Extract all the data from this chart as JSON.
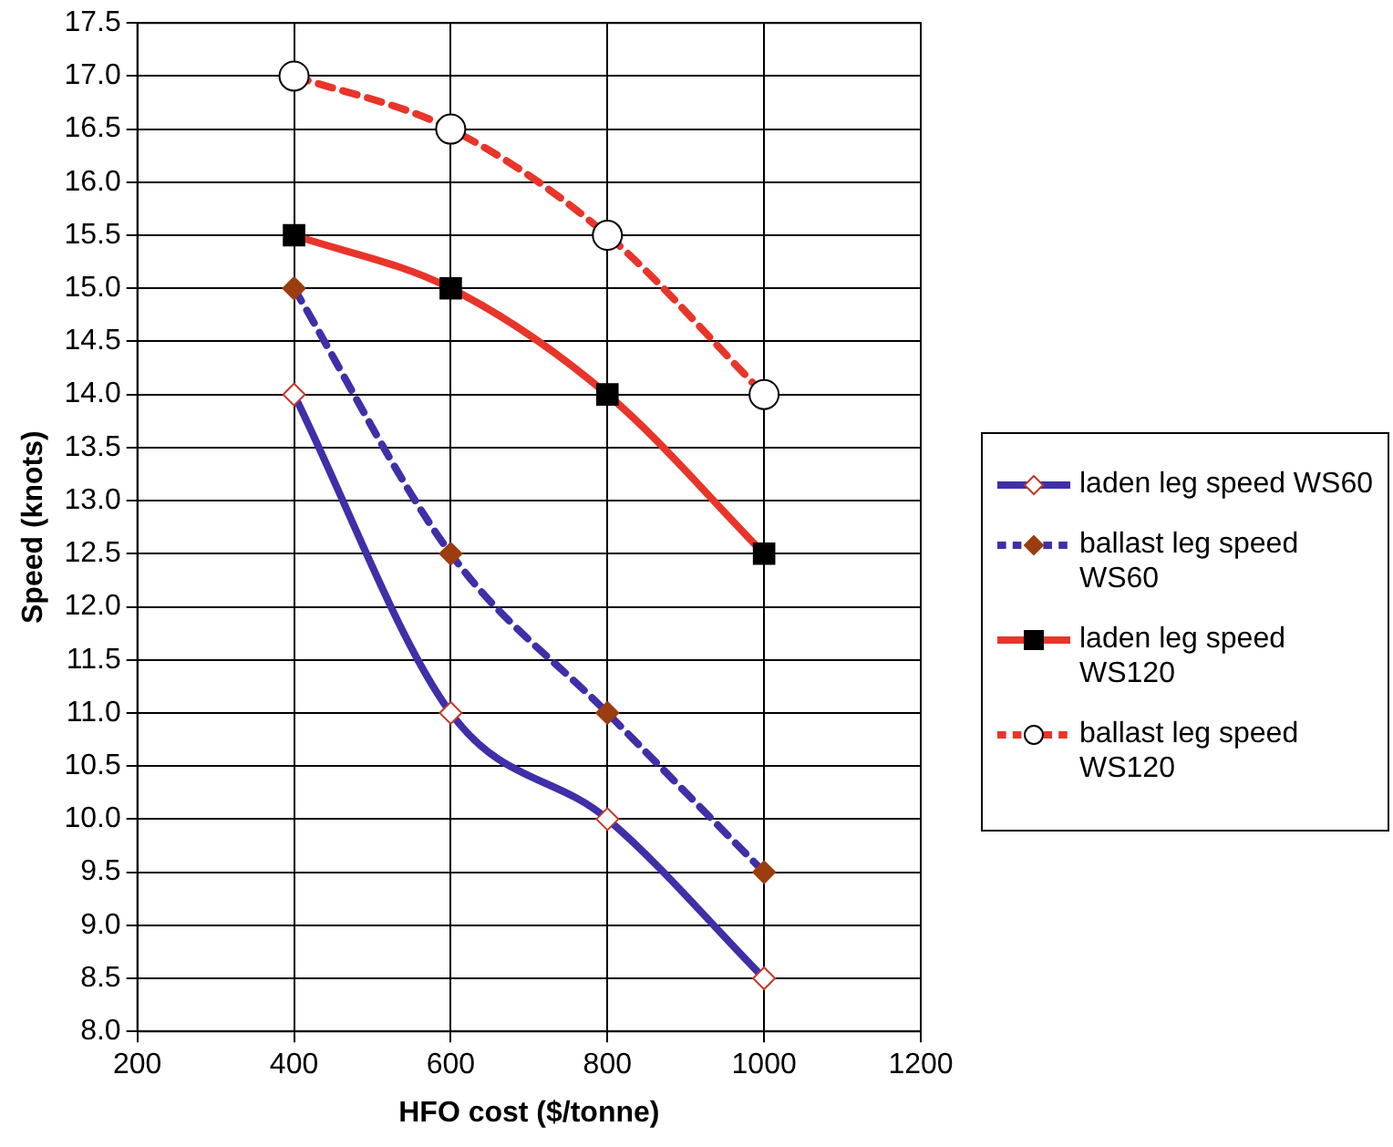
{
  "chart_data": {
    "type": "line",
    "xlabel": "HFO cost ($/tonne)",
    "ylabel": "Speed (knots)",
    "x": [
      400,
      600,
      800,
      1000
    ],
    "series": [
      {
        "name": "laden leg speed WS60",
        "color": "#3f2fa8",
        "values": [
          14,
          11,
          10,
          8.5
        ],
        "marker": "diamond",
        "line_style": "solid"
      },
      {
        "name": "ballast leg speed WS60",
        "color": "#3f2fa8",
        "values": [
          15,
          12.5,
          11,
          9.5
        ],
        "marker": "diamond",
        "line_style": "dashed"
      },
      {
        "name": "laden leg speed WS120",
        "color": "#e8352a",
        "values": [
          15.5,
          15,
          14,
          12.5
        ],
        "marker": "square",
        "line_style": "solid"
      },
      {
        "name": "ballast leg speed WS120",
        "color": "#e8352a",
        "values": [
          17,
          16.5,
          15.5,
          14
        ],
        "marker": "circle",
        "line_style": "dashed"
      }
    ],
    "xlim": [
      200,
      1200
    ],
    "xticks": [
      200,
      400,
      600,
      800,
      1000,
      1200
    ],
    "ylim": [
      8,
      17.5
    ],
    "yticks": [
      {
        "value": 8,
        "label": "8.0"
      },
      {
        "value": 8.5,
        "label": "8.5"
      },
      {
        "value": 9,
        "label": "9.0"
      },
      {
        "value": 9.5,
        "label": "9.5"
      },
      {
        "value": 10,
        "label": "10.0"
      },
      {
        "value": 10.5,
        "label": "10.5"
      },
      {
        "value": 11,
        "label": "11.0"
      },
      {
        "value": 11.5,
        "label": "11.5"
      },
      {
        "value": 12,
        "label": "12.0"
      },
      {
        "value": 12.5,
        "label": "12.5"
      },
      {
        "value": 13,
        "label": "13.0"
      },
      {
        "value": 13.5,
        "label": "13.5"
      },
      {
        "value": 14,
        "label": "14.0"
      },
      {
        "value": 14.5,
        "label": "14.5"
      },
      {
        "value": 15,
        "label": "15.0"
      },
      {
        "value": 15.5,
        "label": "15.5"
      },
      {
        "value": 16,
        "label": "16.0"
      },
      {
        "value": 16.5,
        "label": "16.5"
      },
      {
        "value": 17,
        "label": "17.0"
      },
      {
        "value": 17.5,
        "label": "17.5"
      }
    ],
    "grid": true,
    "legend": "right"
  }
}
